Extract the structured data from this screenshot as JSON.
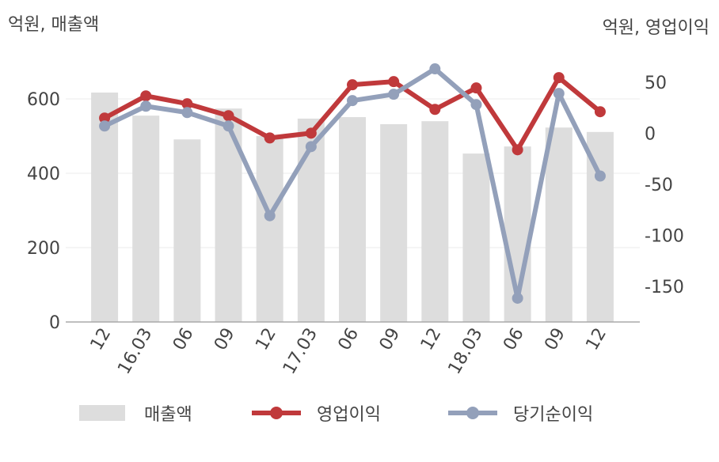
{
  "chart_data": {
    "type": "bar_line",
    "y_label": "억원, 매출액",
    "y2_label": "억원, 영업이익",
    "categories": [
      "12",
      "16.03",
      "06",
      "09",
      "12",
      "17.03",
      "06",
      "09",
      "12",
      "18.03",
      "06",
      "09",
      "12"
    ],
    "ylim": [
      0,
      700
    ],
    "yticks": [
      0,
      200,
      400,
      600
    ],
    "y2lim": [
      -185,
      70
    ],
    "y2ticks": [
      -150,
      -100,
      -50,
      0,
      50
    ],
    "grid": true,
    "legend": "bottom",
    "series": [
      {
        "name": "매출액",
        "color": "#dddddd",
        "kind": "bar",
        "values": [
          617,
          555,
          491,
          574,
          500,
          547,
          551,
          532,
          540,
          453,
          472,
          523,
          511
        ]
      },
      {
        "name": "영업이익",
        "color": "#c0393b",
        "kind": "line",
        "axis": "y2",
        "values": [
          14.8,
          36.5,
          28.8,
          17.1,
          -4.7,
          0,
          47.4,
          50.5,
          23.3,
          44.3,
          -16.3,
          54.4,
          21
        ]
      },
      {
        "name": "당기순이익",
        "color": "#93a0ba",
        "kind": "line",
        "axis": "y2",
        "values": [
          7,
          26.4,
          20.2,
          7,
          -80.9,
          -13.2,
          31.9,
          38.1,
          63,
          28,
          -161.7,
          38.9,
          -42
        ]
      }
    ]
  }
}
